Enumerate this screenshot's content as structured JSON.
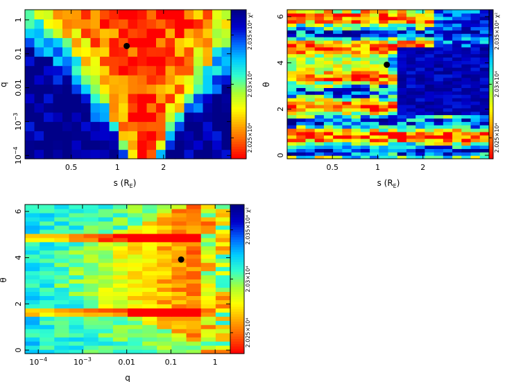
{
  "chart_data": [
    {
      "type": "heatmap",
      "panel": "top-left",
      "xlabel": "s (R",
      "xlabel_sub": "E",
      "ylabel": "q",
      "xscale": "log",
      "yscale": "log",
      "xlim": [
        0.25,
        5.5
      ],
      "ylim": [
        8e-05,
        2.0
      ],
      "nx": 22,
      "ny": 16,
      "x_ticks": [
        {
          "value": 0.5,
          "label": "0.5"
        },
        {
          "value": 1,
          "label": "1"
        },
        {
          "value": 2,
          "label": "2"
        }
      ],
      "y_ticks": [
        {
          "value": 0.0001,
          "label": "10",
          "sup": "−4"
        },
        {
          "value": 0.001,
          "label": "10",
          "sup": "−3"
        },
        {
          "value": 0.01,
          "label": "0.01"
        },
        {
          "value": 0.1,
          "label": "0.1"
        },
        {
          "value": 1,
          "label": "1"
        }
      ],
      "best_fit": {
        "x": 1.15,
        "y": 0.17
      },
      "colorbar": {
        "label": "χ²",
        "ticks": [
          "2.035×10⁴",
          "2.03×10⁴",
          "2.025×10⁴"
        ]
      }
    },
    {
      "type": "heatmap",
      "panel": "top-right",
      "xlabel": "s (R",
      "xlabel_sub": "E",
      "ylabel": "θ",
      "xscale": "log",
      "yscale": "linear",
      "xlim": [
        0.25,
        5.5
      ],
      "ylim": [
        -0.15,
        6.3
      ],
      "nx": 22,
      "ny": 44,
      "x_ticks": [
        {
          "value": 0.5,
          "label": "0.5"
        },
        {
          "value": 1,
          "label": "1"
        },
        {
          "value": 2,
          "label": "2"
        }
      ],
      "y_ticks": [
        {
          "value": 0,
          "label": "0"
        },
        {
          "value": 2,
          "label": "2"
        },
        {
          "value": 4,
          "label": "4"
        },
        {
          "value": 6,
          "label": "6"
        }
      ],
      "best_fit": {
        "x": 1.15,
        "y": 3.92
      },
      "colorbar": {
        "label": "χ²",
        "ticks": [
          "2.035×10⁴",
          "2.03×10⁴",
          "2.025×10⁴"
        ]
      }
    },
    {
      "type": "heatmap",
      "panel": "bottom-left",
      "xlabel": "q",
      "ylabel": "θ",
      "xscale": "log",
      "yscale": "linear",
      "xlim": [
        5e-05,
        2.2
      ],
      "ylim": [
        -0.15,
        6.3
      ],
      "nx": 14,
      "ny": 36,
      "x_ticks": [
        {
          "value": 0.0001,
          "label": "10",
          "sup": "−4"
        },
        {
          "value": 0.001,
          "label": "10",
          "sup": "−3"
        },
        {
          "value": 0.01,
          "label": "0.01"
        },
        {
          "value": 0.1,
          "label": "0.1"
        },
        {
          "value": 1,
          "label": "1"
        }
      ],
      "y_ticks": [
        {
          "value": 0,
          "label": "0"
        },
        {
          "value": 2,
          "label": "2"
        },
        {
          "value": 4,
          "label": "4"
        },
        {
          "value": 6,
          "label": "6"
        }
      ],
      "best_fit": {
        "x": 0.17,
        "y": 3.92
      },
      "colorbar": {
        "label": "χ²",
        "ticks": [
          "2.035×10⁴",
          "2.03×10⁴",
          "2.025×10⁴"
        ]
      }
    }
  ],
  "colors": {
    "scale": [
      "#ff0000",
      "#ff5a00",
      "#ffaa00",
      "#ffff00",
      "#aaff33",
      "#33ffcc",
      "#00ccff",
      "#0066ff",
      "#0000cc",
      "#000088"
    ],
    "marker": "#000000"
  }
}
